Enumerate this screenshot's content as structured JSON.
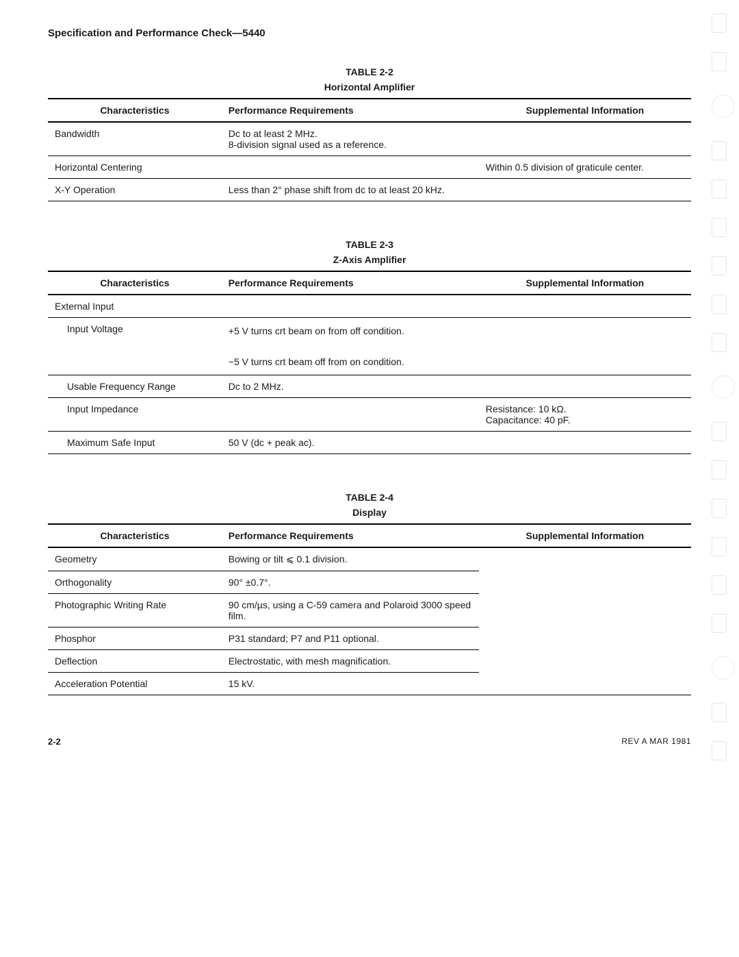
{
  "header": "Specification and Performance Check—5440",
  "tables": [
    {
      "number": "TABLE 2-2",
      "title": "Horizontal Amplifier",
      "columns": [
        "Characteristics",
        "Performance Requirements",
        "Supplemental Information"
      ],
      "rows": [
        {
          "char": "Bandwidth",
          "perf": "Dc to at least 2 MHz.\n8-division signal used as a reference.",
          "supp": ""
        },
        {
          "char": "Horizontal Centering",
          "perf": "",
          "supp": "Within 0.5 division of graticule center."
        },
        {
          "char": "X-Y Operation",
          "perf": "Less than 2° phase shift from dc to at least 20 kHz.",
          "supp": ""
        }
      ]
    },
    {
      "number": "TABLE 2-3",
      "title": "Z-Axis Amplifier",
      "columns": [
        "Characteristics",
        "Performance Requirements",
        "Supplemental Information"
      ],
      "rows": [
        {
          "char": "External Input",
          "perf": "",
          "supp": "",
          "header": true
        },
        {
          "char": "Input Voltage",
          "indent": true,
          "perf": "+5 V turns crt beam on from off condition.\n\n−5 V turns crt beam off from on condition.",
          "supp": ""
        },
        {
          "char": "Usable Frequency Range",
          "indent": true,
          "perf": "Dc to 2 MHz.",
          "supp": ""
        },
        {
          "char": "Input Impedance",
          "indent": true,
          "perf": "",
          "supp": "Resistance: 10 kΩ.\nCapacitance: 40 pF."
        },
        {
          "char": "Maximum Safe Input",
          "indent": true,
          "perf": "50 V (dc + peak ac).",
          "supp": ""
        }
      ]
    },
    {
      "number": "TABLE 2-4",
      "title": "Display",
      "columns": [
        "Characteristics",
        "Performance Requirements",
        "Supplemental Information"
      ],
      "rows": [
        {
          "char": "Geometry",
          "perf": "Bowing or tilt ⩽ 0.1 division.",
          "supp": ""
        },
        {
          "char": "Orthogonality",
          "perf": "90° ±0.7°.",
          "supp": ""
        },
        {
          "char": "Photographic Writing Rate",
          "perf": "90 cm/µs, using a C-59 camera and Polaroid 3000 speed film.",
          "supp": ""
        },
        {
          "char": "Phosphor",
          "perf": "P31 standard; P7 and P11 optional.",
          "supp": ""
        },
        {
          "char": "Deflection",
          "perf": "Electrostatic, with mesh magnification.",
          "supp": ""
        },
        {
          "char": "Acceleration Potential",
          "perf": "15 kV.",
          "supp": ""
        }
      ]
    }
  ],
  "footer": {
    "page": "2-2",
    "rev": "REV A MAR 1981"
  }
}
